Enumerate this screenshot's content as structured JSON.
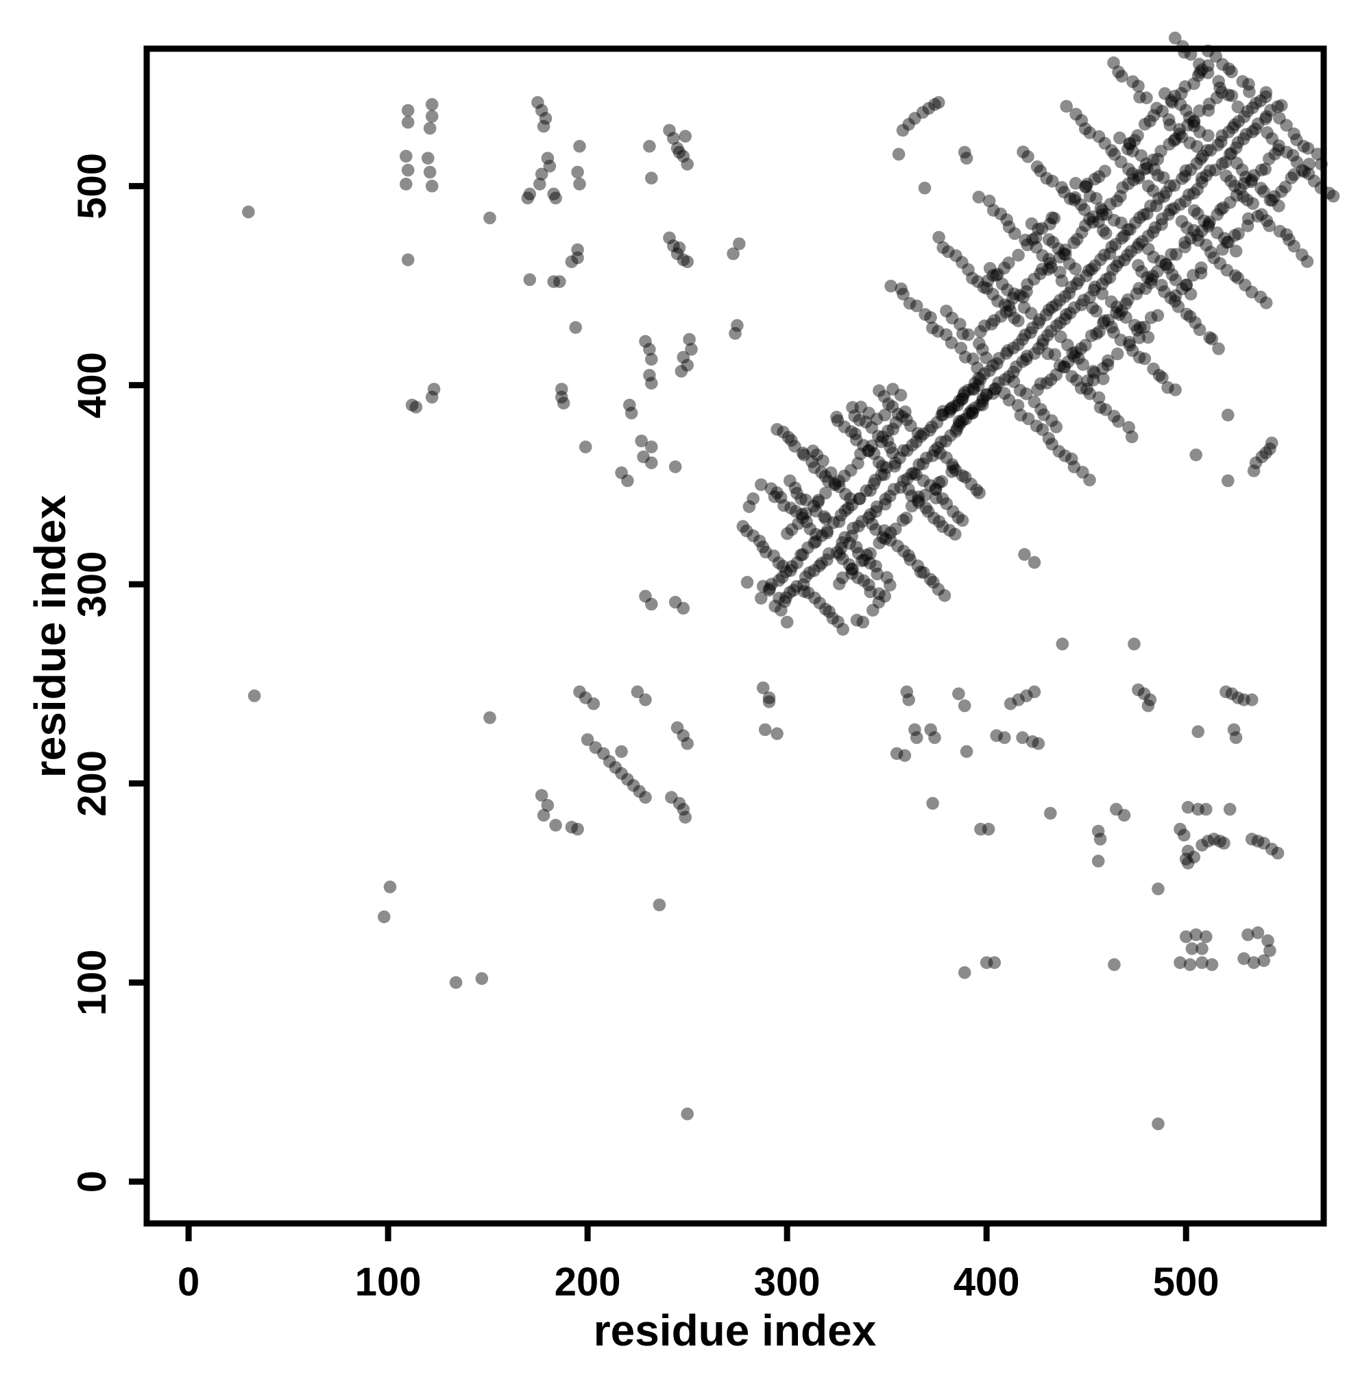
{
  "chart_data": {
    "type": "scatter",
    "title": "",
    "xlabel": "residue index",
    "ylabel": "residue index",
    "xlim": [
      -21,
      569
    ],
    "ylim": [
      -21,
      569
    ],
    "xticks": [
      0,
      100,
      200,
      300,
      400,
      500
    ],
    "yticks": [
      0,
      100,
      200,
      300,
      400,
      500
    ],
    "grid": false,
    "legend": null,
    "point_color": "#000000",
    "point_opacity": 0.45,
    "point_radius_px": 9.3,
    "points": [
      [
        30,
        487
      ],
      [
        33,
        244
      ],
      [
        110,
        538
      ],
      [
        110,
        532
      ],
      [
        122,
        541
      ],
      [
        122,
        535
      ],
      [
        121,
        529
      ],
      [
        109,
        515
      ],
      [
        110,
        508
      ],
      [
        109,
        501
      ],
      [
        120,
        514
      ],
      [
        121,
        507
      ],
      [
        122,
        500
      ],
      [
        110,
        463
      ],
      [
        112,
        390
      ],
      [
        114,
        389
      ],
      [
        101,
        148
      ],
      [
        98,
        133
      ],
      [
        134,
        100
      ],
      [
        147,
        102
      ],
      [
        175,
        542
      ],
      [
        177,
        538
      ],
      [
        179,
        534
      ],
      [
        178,
        530
      ],
      [
        196,
        520
      ],
      [
        180,
        514
      ],
      [
        181,
        510
      ],
      [
        177,
        506
      ],
      [
        176,
        501
      ],
      [
        171,
        496
      ],
      [
        170,
        494
      ],
      [
        183,
        496
      ],
      [
        184,
        494
      ],
      [
        195,
        507
      ],
      [
        196,
        501
      ],
      [
        151,
        484
      ],
      [
        195,
        468
      ],
      [
        195,
        464
      ],
      [
        192,
        462
      ],
      [
        171,
        453
      ],
      [
        183,
        452
      ],
      [
        186,
        452
      ],
      [
        194,
        429
      ],
      [
        231,
        520
      ],
      [
        232,
        504
      ],
      [
        241,
        528
      ],
      [
        243,
        524
      ],
      [
        245,
        519
      ],
      [
        248,
        515
      ],
      [
        250,
        511
      ],
      [
        246,
        517
      ],
      [
        249,
        525
      ],
      [
        229,
        422
      ],
      [
        231,
        418
      ],
      [
        232,
        413
      ],
      [
        231,
        405
      ],
      [
        232,
        401
      ],
      [
        251,
        423
      ],
      [
        252,
        418
      ],
      [
        250,
        410
      ],
      [
        247,
        407
      ],
      [
        248,
        414
      ],
      [
        241,
        474
      ],
      [
        243,
        470
      ],
      [
        245,
        466
      ],
      [
        248,
        463
      ],
      [
        250,
        462
      ],
      [
        246,
        469
      ],
      [
        273,
        466
      ],
      [
        276,
        471
      ],
      [
        275,
        430
      ],
      [
        274,
        426
      ],
      [
        123,
        398
      ],
      [
        122,
        394
      ],
      [
        187,
        398
      ],
      [
        187,
        394
      ],
      [
        188,
        391
      ],
      [
        199,
        369
      ],
      [
        221,
        390
      ],
      [
        222,
        386
      ],
      [
        227,
        372
      ],
      [
        232,
        369
      ],
      [
        228,
        364
      ],
      [
        232,
        361
      ],
      [
        244,
        359
      ],
      [
        217,
        356
      ],
      [
        220,
        352
      ],
      [
        229,
        294
      ],
      [
        232,
        290
      ],
      [
        244,
        291
      ],
      [
        248,
        288
      ],
      [
        236,
        139
      ],
      [
        250,
        34
      ],
      [
        196,
        246
      ],
      [
        199,
        243
      ],
      [
        203,
        240
      ],
      [
        225,
        246
      ],
      [
        229,
        242
      ],
      [
        217,
        216
      ],
      [
        200,
        222
      ],
      [
        204,
        218
      ],
      [
        208,
        215
      ],
      [
        211,
        211
      ],
      [
        214,
        208
      ],
      [
        217,
        205
      ],
      [
        220,
        202
      ],
      [
        223,
        199
      ],
      [
        226,
        196
      ],
      [
        229,
        193
      ],
      [
        242,
        193
      ],
      [
        246,
        190
      ],
      [
        248,
        187
      ],
      [
        249,
        183
      ],
      [
        245,
        228
      ],
      [
        248,
        224
      ],
      [
        250,
        220
      ],
      [
        151,
        233
      ],
      [
        177,
        194
      ],
      [
        180,
        189
      ],
      [
        178,
        184
      ],
      [
        184,
        179
      ],
      [
        192,
        178
      ],
      [
        195,
        177
      ],
      [
        288,
        248
      ],
      [
        291,
        243
      ],
      [
        291,
        241
      ],
      [
        289,
        227
      ],
      [
        295,
        225
      ],
      [
        360,
        246
      ],
      [
        361,
        242
      ],
      [
        364,
        227
      ],
      [
        365,
        223
      ],
      [
        372,
        227
      ],
      [
        374,
        223
      ],
      [
        355,
        215
      ],
      [
        359,
        214
      ],
      [
        386,
        245
      ],
      [
        389,
        239
      ],
      [
        390,
        216
      ],
      [
        373,
        190
      ],
      [
        412,
        240
      ],
      [
        416,
        242
      ],
      [
        420,
        244
      ],
      [
        424,
        246
      ],
      [
        405,
        224
      ],
      [
        409,
        223
      ],
      [
        418,
        223
      ],
      [
        423,
        221
      ],
      [
        426,
        220
      ],
      [
        432,
        185
      ],
      [
        397,
        177
      ],
      [
        401,
        177
      ],
      [
        456,
        176
      ],
      [
        457,
        172
      ],
      [
        456,
        161
      ],
      [
        465,
        187
      ],
      [
        469,
        184
      ],
      [
        476,
        247
      ],
      [
        479,
        245
      ],
      [
        482,
        242
      ],
      [
        481,
        239
      ],
      [
        501,
        188
      ],
      [
        506,
        187
      ],
      [
        510,
        187
      ],
      [
        522,
        187
      ],
      [
        506,
        226
      ],
      [
        524,
        227
      ],
      [
        525,
        223
      ],
      [
        520,
        246
      ],
      [
        523,
        245
      ],
      [
        526,
        243
      ],
      [
        529,
        242
      ],
      [
        533,
        242
      ],
      [
        497,
        177
      ],
      [
        499,
        174
      ],
      [
        501,
        166
      ],
      [
        504,
        163
      ],
      [
        501,
        160
      ],
      [
        500,
        162
      ],
      [
        508,
        169
      ],
      [
        511,
        171
      ],
      [
        514,
        172
      ],
      [
        517,
        171
      ],
      [
        519,
        170
      ],
      [
        533,
        172
      ],
      [
        536,
        171
      ],
      [
        539,
        170
      ],
      [
        543,
        167
      ],
      [
        546,
        165
      ],
      [
        486,
        147
      ],
      [
        400,
        110
      ],
      [
        404,
        110
      ],
      [
        389,
        105
      ],
      [
        464,
        109
      ],
      [
        486,
        29
      ],
      [
        500,
        123
      ],
      [
        505,
        124
      ],
      [
        510,
        123
      ],
      [
        503,
        117
      ],
      [
        508,
        117
      ],
      [
        497,
        110
      ],
      [
        502,
        109
      ],
      [
        508,
        110
      ],
      [
        513,
        109
      ],
      [
        531,
        124
      ],
      [
        536,
        125
      ],
      [
        541,
        121
      ],
      [
        542,
        116
      ],
      [
        529,
        112
      ],
      [
        534,
        110
      ],
      [
        539,
        111
      ],
      [
        438,
        270
      ],
      [
        474,
        270
      ],
      [
        419,
        315
      ],
      [
        424,
        311
      ],
      [
        521,
        385
      ],
      [
        505,
        365
      ],
      [
        521,
        352
      ],
      [
        534,
        357
      ],
      [
        535,
        361
      ],
      [
        538,
        364
      ],
      [
        540,
        366
      ],
      [
        542,
        368
      ],
      [
        543,
        371
      ],
      [
        358,
        528
      ],
      [
        361,
        531
      ],
      [
        364,
        534
      ],
      [
        368,
        537
      ],
      [
        371,
        539
      ],
      [
        374,
        541
      ],
      [
        376,
        542
      ],
      [
        356,
        516
      ],
      [
        389,
        517
      ],
      [
        390,
        514
      ],
      [
        369,
        499
      ],
      [
        280,
        301
      ],
      [
        288,
        299
      ],
      [
        291,
        297
      ],
      [
        287,
        293
      ],
      [
        296,
        293
      ],
      [
        294,
        289
      ],
      [
        297,
        287
      ],
      [
        300,
        281
      ],
      [
        281,
        339
      ],
      [
        283,
        343
      ],
      [
        287,
        350
      ],
      [
        292,
        348
      ],
      [
        295,
        346
      ],
      [
        315,
        365
      ],
      [
        318,
        362
      ],
      [
        322,
        356
      ],
      [
        313,
        367
      ],
      [
        337,
        389
      ],
      [
        341,
        386
      ],
      [
        345,
        383
      ],
      [
        353,
        398
      ],
      [
        357,
        395
      ],
      [
        349,
        385
      ],
      [
        335,
        282
      ],
      [
        338,
        281
      ],
      [
        343,
        287
      ],
      [
        346,
        291
      ],
      [
        349,
        294
      ]
    ],
    "lattice_clusters": [
      {
        "name": "diagonal-block-1",
        "diag": {
          "from": 291,
          "to": 389,
          "step": 2,
          "offset": 7,
          "jitter": 1.2
        },
        "bands": [
          {
            "offset": 26,
            "from": 299,
            "to": 361,
            "step": 3,
            "jitter": 1.7,
            "gaps": []
          }
        ],
        "rungs": [
          {
            "c": 303,
            "tmin": 6,
            "tmax": 27,
            "step": 2.4,
            "double": false
          },
          {
            "c": 320,
            "tmin": 6,
            "tmax": 27,
            "step": 2.4,
            "double": true
          },
          {
            "c": 337,
            "tmin": 6,
            "tmax": 42,
            "step": 2.4,
            "double": false
          },
          {
            "c": 354,
            "tmin": 6,
            "tmax": 30,
            "step": 2.4,
            "double": true
          },
          {
            "c": 371,
            "tmin": 6,
            "tmax": 27,
            "step": 2.4,
            "double": false
          }
        ],
        "rung_jitter": 1.3,
        "double_gap": 6,
        "double_tmax": 28
      },
      {
        "name": "diagonal-block-2",
        "diag": {
          "from": 393,
          "to": 541,
          "step": 2,
          "offset": 6,
          "jitter": 1.1
        },
        "bands": [
          {
            "offset": 29,
            "from": 397,
            "to": 519,
            "step": 2.4,
            "jitter": 1.5,
            "gaps": []
          },
          {
            "offset": 50,
            "from": 399,
            "to": 511,
            "step": 2.6,
            "jitter": 1.7,
            "gaps": [
              [
                415,
                421
              ],
              [
                437,
                443
              ],
              [
                461,
                467
              ],
              [
                485,
                491
              ]
            ]
          }
        ],
        "rungs": [
          {
            "c": 402,
            "tmin": 7,
            "tmax": 50,
            "step": 3,
            "double": true
          },
          {
            "c": 424,
            "tmin": 7,
            "tmax": 50,
            "step": 3,
            "double": true
          },
          {
            "c": 446,
            "tmin": 7,
            "tmax": 50,
            "step": 3,
            "double": true
          },
          {
            "c": 468,
            "tmin": 7,
            "tmax": 50,
            "step": 3,
            "double": true
          },
          {
            "c": 490,
            "tmin": 7,
            "tmax": 50,
            "step": 3,
            "double": true
          },
          {
            "c": 512,
            "tmin": 7,
            "tmax": 50,
            "step": 3,
            "double": true
          },
          {
            "c": 534,
            "tmin": 7,
            "tmax": 40,
            "step": 3,
            "double": true
          }
        ],
        "rung_jitter": 1.4,
        "double_gap": 6,
        "double_tmax": 30
      },
      {
        "name": "connector",
        "diag": {
          "from": 379,
          "to": 397,
          "step": 2,
          "offset": 6,
          "jitter": 1.0
        },
        "bands": [],
        "rungs": [],
        "rung_jitter": 1.0,
        "double_gap": 6,
        "double_tmax": 0
      }
    ]
  }
}
